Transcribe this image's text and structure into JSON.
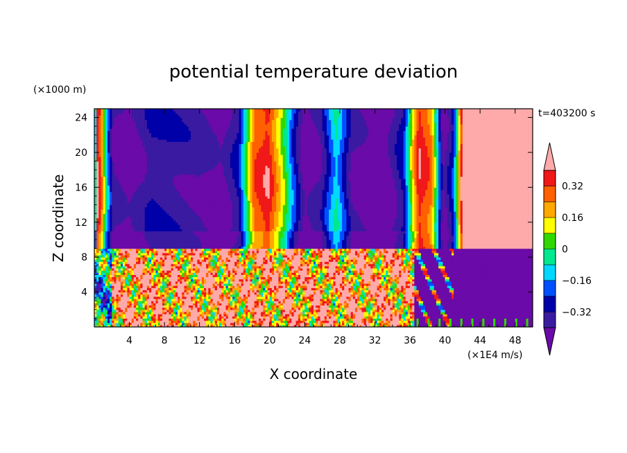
{
  "chart_data": {
    "type": "heatmap",
    "title": "potential temperature deviation",
    "xlabel": "X coordinate",
    "ylabel": "Z coordinate",
    "x_unit": "(×1E4 m/s)",
    "y_unit": "(×1000 m)",
    "time_label": "t=403200 s",
    "xlim": [
      0,
      50
    ],
    "ylim": [
      0,
      25
    ],
    "x_ticks": [
      4,
      8,
      12,
      16,
      20,
      24,
      28,
      32,
      36,
      40,
      44,
      48
    ],
    "y_ticks": [
      4,
      8,
      12,
      16,
      20,
      24
    ],
    "colorbar": {
      "levels": [
        -0.4,
        -0.32,
        -0.24,
        -0.16,
        -0.08,
        0,
        0.08,
        0.16,
        0.24,
        0.32,
        0.4
      ],
      "labels": [
        "0.32",
        "0.16",
        "0",
        "-0.16",
        "-0.32"
      ],
      "label_values": [
        0.32,
        0.16,
        0,
        -0.16,
        -0.32
      ],
      "colors": [
        "#6a0aa8",
        "#3a1aa0",
        "#0000a8",
        "#0050ff",
        "#00d8ff",
        "#00e890",
        "#30d800",
        "#ffff00",
        "#ffa800",
        "#ff6000",
        "#f01818",
        "#ffaaaa"
      ]
    },
    "upper_layer": {
      "z_range": [
        8.8,
        25
      ],
      "columns": [
        {
          "x": 0,
          "v": -0.3
        },
        {
          "x": 0.4,
          "v": 0.45
        },
        {
          "x": 0.9,
          "v": 0.2
        },
        {
          "x": 1.4,
          "v": -0.12
        },
        {
          "x": 2.2,
          "v": -0.4
        },
        {
          "x": 4,
          "v": -0.45
        },
        {
          "x": 6.5,
          "v": -0.33
        },
        {
          "x": 9,
          "v": -0.35
        },
        {
          "x": 12,
          "v": -0.38
        },
        {
          "x": 14.5,
          "v": -0.45
        },
        {
          "x": 16.5,
          "v": -0.3
        },
        {
          "x": 18.2,
          "v": 0.28
        },
        {
          "x": 19.8,
          "v": 0.38
        },
        {
          "x": 21.4,
          "v": 0.1
        },
        {
          "x": 22.6,
          "v": -0.2
        },
        {
          "x": 24,
          "v": -0.46
        },
        {
          "x": 25.8,
          "v": -0.38
        },
        {
          "x": 27.6,
          "v": -0.08
        },
        {
          "x": 29.4,
          "v": -0.4
        },
        {
          "x": 31.2,
          "v": -0.45
        },
        {
          "x": 33.5,
          "v": -0.45
        },
        {
          "x": 35.3,
          "v": -0.28
        },
        {
          "x": 37,
          "v": 0.38
        },
        {
          "x": 38.5,
          "v": 0.25
        },
        {
          "x": 39.8,
          "v": -0.45
        },
        {
          "x": 41,
          "v": -0.25
        },
        {
          "x": 42,
          "v": 0.45
        },
        {
          "x": 50,
          "v": 0.45
        }
      ]
    },
    "lower_layer": {
      "z_range": [
        0,
        8.8
      ],
      "x_range": [
        0,
        36.5
      ],
      "mean": 0.3,
      "quiet_value": -0.45
    }
  }
}
